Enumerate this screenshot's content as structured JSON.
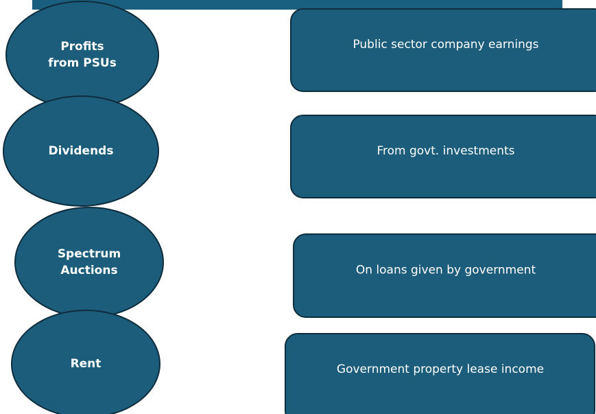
{
  "nodes": [
    {
      "label_lines": [
        "Profits",
        "from PSUs"
      ],
      "description": "Public sector company earnings"
    },
    {
      "label_lines": [
        "Dividends"
      ],
      "description": "From govt. investments"
    },
    {
      "label_lines": [
        "Spectrum",
        "Auctions"
      ],
      "description": "On loans given by government"
    },
    {
      "label_lines": [
        "Rent"
      ],
      "description": "Government property lease income"
    }
  ]
}
